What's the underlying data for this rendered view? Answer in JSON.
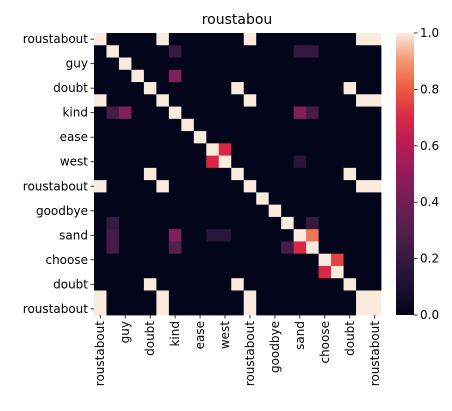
{
  "chart_data": {
    "type": "heatmap",
    "title": "roustabou",
    "xlabel": "",
    "ylabel": "",
    "grid": false,
    "colormap": "rocket",
    "colorbar": {
      "range": [
        0.0,
        1.0
      ],
      "ticks": [
        "0.0",
        "0.2",
        "0.4",
        "0.6",
        "0.8",
        "1.0"
      ]
    },
    "xtick_labels": [
      "roustabout",
      "guy",
      "doubt",
      "kind",
      "ease",
      "west",
      "roustabout",
      "goodbye",
      "sand",
      "choose",
      "doubt",
      "roustabout"
    ],
    "ytick_labels": [
      "roustabout",
      "guy",
      "doubt",
      "kind",
      "ease",
      "west",
      "roustabout",
      "goodbye",
      "sand",
      "choose",
      "doubt",
      "roustabout"
    ],
    "n_rows": 23,
    "n_cols": 23,
    "matrix": [
      [
        1,
        0,
        0,
        0,
        0,
        1,
        0,
        0,
        0,
        0,
        0,
        0,
        1,
        0,
        0,
        0,
        0,
        0,
        0,
        0,
        0,
        1,
        1
      ],
      [
        0,
        1,
        0,
        0,
        0,
        0,
        0.2,
        0,
        0,
        0,
        0,
        0,
        0,
        0,
        0,
        0,
        0.2,
        0.2,
        0,
        0,
        0,
        0,
        0
      ],
      [
        0,
        0,
        1,
        0,
        0,
        0,
        0,
        0,
        0,
        0,
        0,
        0,
        0,
        0,
        0,
        0,
        0,
        0,
        0,
        0,
        0,
        0,
        0
      ],
      [
        0,
        0,
        0,
        1,
        0,
        0,
        0.45,
        0,
        0,
        0,
        0,
        0,
        0,
        0,
        0,
        0,
        0,
        0,
        0,
        0,
        0,
        0,
        0
      ],
      [
        0,
        0,
        0,
        0,
        1,
        0,
        0,
        0,
        0,
        0,
        0,
        1,
        0,
        0,
        0,
        0,
        0,
        0,
        0,
        0,
        1,
        0,
        0
      ],
      [
        1,
        0,
        0,
        0,
        0,
        1,
        0,
        0,
        0,
        0,
        0,
        0,
        1,
        0,
        0,
        0,
        0,
        0,
        0,
        0,
        0,
        1,
        1
      ],
      [
        0,
        0.25,
        0.45,
        0,
        0,
        0,
        1,
        0,
        0,
        0,
        0,
        0,
        0,
        0,
        0,
        0,
        0.45,
        0.25,
        0,
        0,
        0,
        0,
        0
      ],
      [
        0,
        0,
        0,
        0,
        0,
        0,
        0,
        1,
        0,
        0,
        0,
        0,
        0,
        0,
        0,
        0,
        0,
        0,
        0,
        0,
        0,
        0,
        0
      ],
      [
        0,
        0,
        0,
        0,
        0,
        0,
        0,
        0,
        1,
        0,
        0,
        0,
        0,
        0,
        0,
        0,
        0,
        0,
        0,
        0,
        0,
        0,
        0
      ],
      [
        0,
        0,
        0,
        0,
        0,
        0,
        0,
        0,
        0,
        1,
        0.7,
        0,
        0,
        0,
        0,
        0,
        0,
        0,
        0,
        0,
        0,
        0,
        0
      ],
      [
        0,
        0,
        0,
        0,
        0,
        0,
        0,
        0,
        0,
        0.7,
        1,
        0,
        0,
        0,
        0,
        0,
        0.15,
        0,
        0,
        0,
        0,
        0,
        0
      ],
      [
        0,
        0,
        0,
        0,
        1,
        0,
        0,
        0,
        0,
        0,
        0,
        1,
        0,
        0,
        0,
        0,
        0,
        0,
        0,
        0,
        1,
        0,
        0
      ],
      [
        1,
        0,
        0,
        0,
        0,
        1,
        0,
        0,
        0,
        0,
        0,
        0,
        1,
        0,
        0,
        0,
        0,
        0,
        0,
        0,
        0,
        1,
        1
      ],
      [
        0,
        0,
        0,
        0,
        0,
        0,
        0,
        0,
        0,
        0,
        0,
        0,
        0,
        1,
        0,
        0,
        0,
        0,
        0,
        0,
        0,
        0,
        0
      ],
      [
        0,
        0,
        0,
        0,
        0,
        0,
        0,
        0,
        0,
        0,
        0,
        0,
        0,
        0,
        1,
        0,
        0,
        0,
        0,
        0,
        0,
        0,
        0
      ],
      [
        0,
        0.2,
        0,
        0,
        0,
        0,
        0,
        0,
        0,
        0,
        0,
        0,
        0,
        0,
        0,
        1,
        0,
        0.2,
        0,
        0,
        0,
        0,
        0
      ],
      [
        0,
        0.25,
        0,
        0,
        0,
        0,
        0.45,
        0,
        0,
        0.15,
        0.15,
        0,
        0,
        0,
        0,
        0,
        1,
        0.85,
        0,
        0,
        0,
        0,
        0
      ],
      [
        0,
        0.25,
        0,
        0,
        0,
        0,
        0.3,
        0,
        0,
        0,
        0,
        0,
        0,
        0,
        0,
        0.25,
        0.7,
        1,
        0,
        0,
        0,
        0,
        0
      ],
      [
        0,
        0,
        0,
        0,
        0,
        0,
        0,
        0,
        0,
        0,
        0,
        0,
        0,
        0,
        0,
        0,
        0,
        0,
        1,
        0.75,
        0,
        0,
        0
      ],
      [
        0,
        0,
        0,
        0,
        0,
        0,
        0,
        0,
        0,
        0,
        0,
        0,
        0,
        0,
        0,
        0,
        0,
        0,
        0.7,
        1,
        0,
        0,
        0
      ],
      [
        0,
        0,
        0,
        0,
        1,
        0,
        0,
        0,
        0,
        0,
        0,
        1,
        0,
        0,
        0,
        0,
        0,
        0,
        0,
        0,
        1,
        0,
        0
      ],
      [
        1,
        0,
        0,
        0,
        0,
        1,
        0,
        0,
        0,
        0,
        0,
        0,
        1,
        0,
        0,
        0,
        0,
        0,
        0,
        0,
        0,
        1,
        1
      ],
      [
        1,
        0,
        0,
        0,
        0,
        1,
        0,
        0,
        0,
        0,
        0,
        0,
        1,
        0,
        0,
        0,
        0,
        0,
        0,
        0,
        0,
        1,
        1
      ]
    ]
  }
}
